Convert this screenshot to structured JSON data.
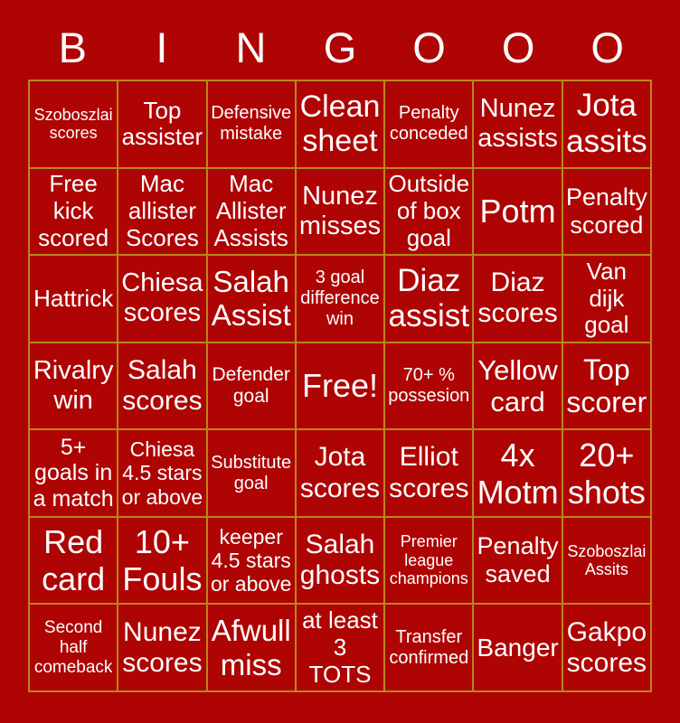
{
  "title": {
    "letters": [
      "B",
      "I",
      "N",
      "G",
      "O",
      "O",
      "O"
    ]
  },
  "colors": {
    "background": "#ae0404",
    "grid_lines": "#bb861b",
    "text": "#ffffff"
  },
  "board": {
    "rows": [
      [
        "Szoboszlai\nscores",
        "Top\nassister",
        "Defensive\nmistake",
        "Clean\nsheet",
        "Penalty\nconceded",
        "Nunez\nassists",
        "Jota\nassits"
      ],
      [
        "Free\nkick\nscored",
        "Mac\nallister\nScores",
        "Mac\nAllister\nAssists",
        "Nunez\nmisses",
        "Outside\nof box\ngoal",
        "Potm",
        "Penalty\nscored"
      ],
      [
        "Hattrick",
        "Chiesa\nscores",
        "Salah\nAssist",
        "3 goal\ndifference\nwin",
        "Diaz\nassist",
        "Diaz\nscores",
        "Van\ndijk\ngoal"
      ],
      [
        "Rivalry\nwin",
        "Salah\nscores",
        "Defender\ngoal",
        "Free!",
        "70+ %\npossesion",
        "Yellow\ncard",
        "Top\nscorer"
      ],
      [
        "5+\ngoals in\na match",
        "Chiesa\n4.5 stars\nor above",
        "Substitute\ngoal",
        "Jota\nscores",
        "Elliot\nscores",
        "4x\nMotm",
        "20+\nshots"
      ],
      [
        "Red\ncard",
        "10+\nFouls",
        "keeper\n4.5 stars\nor above",
        "Salah\nghosts",
        "Premier\nleague\nchampions",
        "Penalty\nsaved",
        "Szoboszlai\nAssits"
      ],
      [
        "Second\nhalf\ncomeback",
        "Nunez\nscores",
        "Afwull\nmiss",
        "at least\n3\nTOTS",
        "Transfer\nconfirmed",
        "Banger",
        "Gakpo\nscores"
      ]
    ],
    "free_cell_label": "Free!"
  }
}
